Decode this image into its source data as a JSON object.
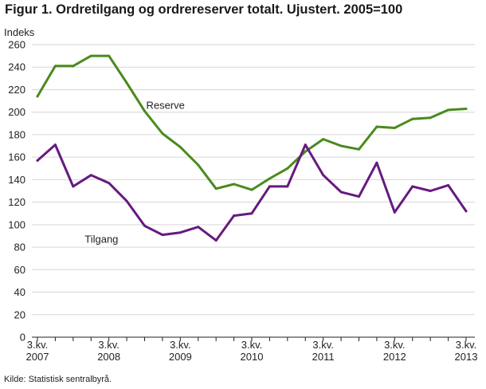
{
  "chart_data": {
    "type": "line",
    "title": "Figur 1. Ordretilgang og ordrereserver totalt. Ujustert. 2005=100",
    "ylabel": "Indeks",
    "ylim": [
      0,
      260
    ],
    "yticks": [
      0,
      20,
      40,
      60,
      80,
      100,
      120,
      140,
      160,
      180,
      200,
      220,
      240,
      260
    ],
    "x": [
      "3.kv. 2007",
      "4.kv. 2007",
      "1.kv. 2008",
      "2.kv. 2008",
      "3.kv. 2008",
      "4.kv. 2008",
      "1.kv. 2009",
      "2.kv. 2009",
      "3.kv. 2009",
      "4.kv. 2009",
      "1.kv. 2010",
      "2.kv. 2010",
      "3.kv. 2010",
      "4.kv. 2010",
      "1.kv. 2011",
      "2.kv. 2011",
      "3.kv. 2011",
      "4.kv. 2011",
      "1.kv. 2012",
      "2.kv. 2012",
      "3.kv. 2012",
      "4.kv. 2012",
      "1.kv. 2013",
      "2.kv. 2013",
      "3.kv. 2013"
    ],
    "xtick_labels": [
      {
        "index": 0,
        "line1": "3.kv.",
        "line2": "2007"
      },
      {
        "index": 4,
        "line1": "3.kv.",
        "line2": "2008"
      },
      {
        "index": 8,
        "line1": "3.kv.",
        "line2": "2009"
      },
      {
        "index": 12,
        "line1": "3.kv.",
        "line2": "2010"
      },
      {
        "index": 16,
        "line1": "3.kv.",
        "line2": "2011"
      },
      {
        "index": 20,
        "line1": "3.kv.",
        "line2": "2012"
      },
      {
        "index": 24,
        "line1": "3.kv.",
        "line2": "2013"
      }
    ],
    "grid": true,
    "series": [
      {
        "name": "Reserve",
        "color": "#4a8a1c",
        "label_at_index": 6,
        "values": [
          214,
          241,
          241,
          250,
          250,
          226,
          201,
          181,
          169,
          153,
          132,
          136,
          131,
          141,
          150,
          165,
          176,
          170,
          167,
          187,
          186,
          194,
          195,
          202,
          203
        ]
      },
      {
        "name": "Tilgang",
        "color": "#661a80",
        "label_at_index": 3,
        "values": [
          157,
          171,
          134,
          144,
          137,
          121,
          99,
          91,
          93,
          98,
          86,
          108,
          110,
          134,
          134,
          171,
          144,
          129,
          125,
          155,
          111,
          134,
          130,
          135,
          112
        ]
      }
    ]
  },
  "source": "Kilde: Statistisk sentralbyrå."
}
